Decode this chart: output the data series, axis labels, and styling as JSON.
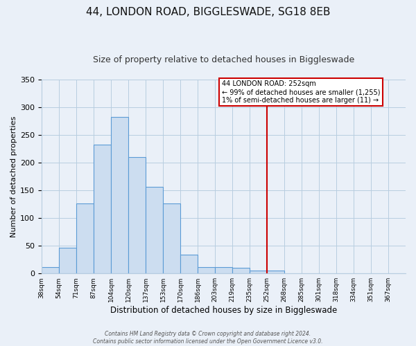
{
  "title": "44, LONDON ROAD, BIGGLESWADE, SG18 8EB",
  "subtitle": "Size of property relative to detached houses in Biggleswade",
  "xlabel": "Distribution of detached houses by size in Biggleswade",
  "ylabel": "Number of detached properties",
  "bin_labels": [
    "38sqm",
    "54sqm",
    "71sqm",
    "87sqm",
    "104sqm",
    "120sqm",
    "137sqm",
    "153sqm",
    "170sqm",
    "186sqm",
    "203sqm",
    "219sqm",
    "235sqm",
    "252sqm",
    "268sqm",
    "285sqm",
    "301sqm",
    "318sqm",
    "334sqm",
    "351sqm",
    "367sqm"
  ],
  "bar_values": [
    12,
    47,
    127,
    232,
    283,
    210,
    157,
    126,
    34,
    12,
    12,
    10,
    5,
    5,
    0,
    0,
    0,
    0,
    0,
    0,
    0
  ],
  "bar_color": "#ccddf0",
  "bar_edge_color": "#5b9bd5",
  "bar_edge_width": 0.8,
  "vline_index": 13,
  "vline_color": "#cc0000",
  "annotation_title": "44 LONDON ROAD: 252sqm",
  "annotation_line1": "← 99% of detached houses are smaller (1,255)",
  "annotation_line2": "1% of semi-detached houses are larger (11) →",
  "ylim": [
    0,
    350
  ],
  "yticks": [
    0,
    50,
    100,
    150,
    200,
    250,
    300,
    350
  ],
  "footer_line1": "Contains HM Land Registry data © Crown copyright and database right 2024.",
  "footer_line2": "Contains public sector information licensed under the Open Government Licence v3.0.",
  "bg_color": "#eaf0f8",
  "title_fontsize": 11,
  "subtitle_fontsize": 9
}
